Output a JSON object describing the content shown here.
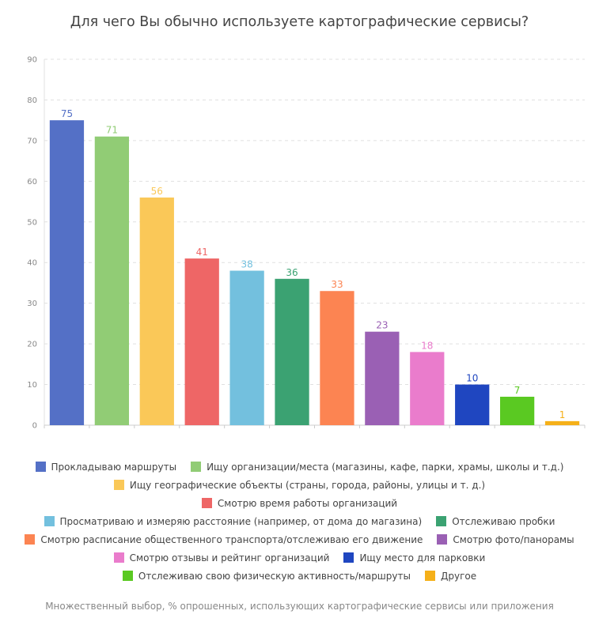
{
  "title": "Для чего Вы обычно используете картографические сервисы?",
  "footnote": "Множественный выбор, % опрошенных, использующих картографические сервисы или приложения",
  "chart_data": {
    "type": "bar",
    "ylim": [
      0,
      90
    ],
    "yticks": [
      0,
      10,
      20,
      30,
      40,
      50,
      60,
      70,
      80,
      90
    ],
    "grid": true,
    "legend_position": "bottom",
    "categories": [
      "Прокладываю маршруты",
      "Ищу организации/места (магазины, кафе, парки, храмы, школы и т.д.)",
      "Ищу географические объекты (страны, города, районы, улицы и т. д.)",
      "Смотрю время работы организаций",
      "Просматриваю и измеряю расстояние (например, от дома до магазина)",
      "Отслеживаю пробки",
      "Смотрю расписание общественного транспорта/отслеживаю его движение",
      "Смотрю фото/панорамы",
      "Смотрю отзывы и рейтинг организаций",
      "Ищу место для парковки",
      "Отслеживаю свою физическую активность/маршруты",
      "Другое"
    ],
    "values": [
      75,
      71,
      56,
      41,
      38,
      36,
      33,
      23,
      18,
      10,
      7,
      1
    ],
    "colors": [
      "#5470c6",
      "#91cc75",
      "#fac858",
      "#ee6666",
      "#73c0de",
      "#3ba272",
      "#fc8452",
      "#9a60b4",
      "#ea7ccc",
      "#1f46c0",
      "#5ac922",
      "#f5b019"
    ]
  },
  "legend_rows": [
    [
      0,
      1
    ],
    [
      2
    ],
    [
      3
    ],
    [
      4,
      5
    ],
    [
      6,
      7
    ],
    [
      8,
      9
    ],
    [
      10,
      11
    ]
  ]
}
